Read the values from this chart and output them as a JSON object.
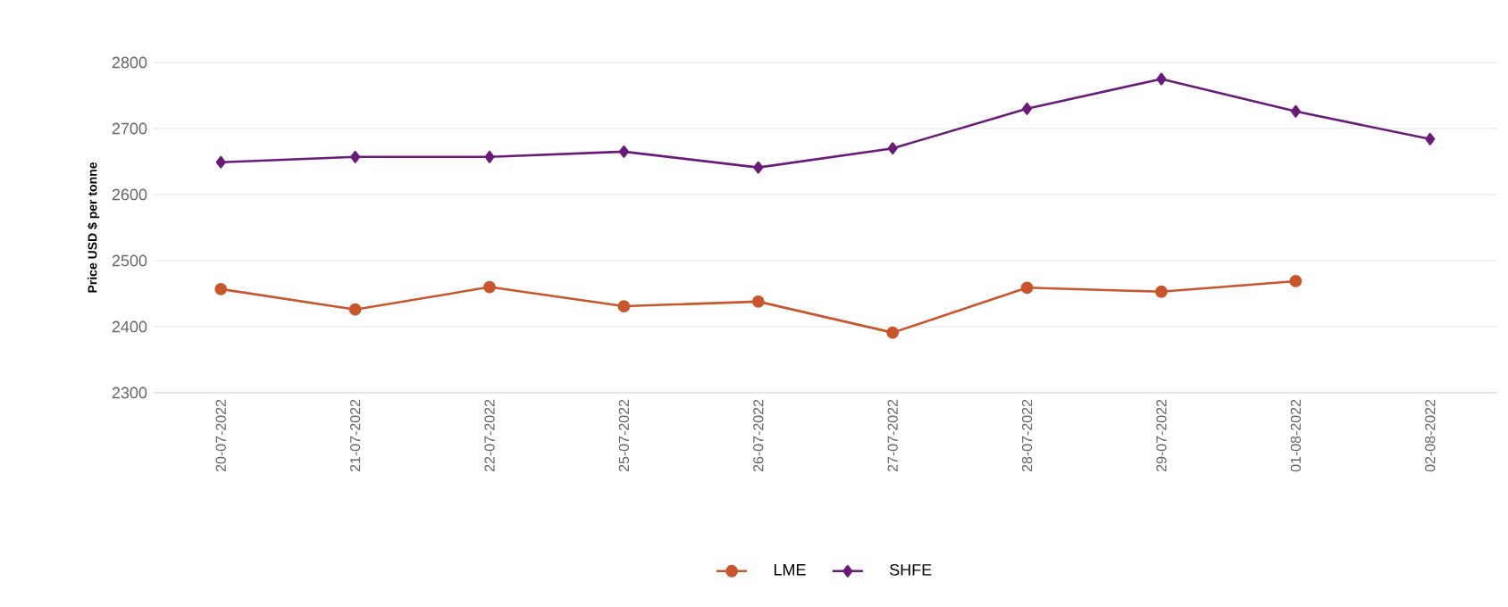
{
  "chart_data": {
    "type": "line",
    "ylabel": "Price USD $ per tonne",
    "categories": [
      "20-07-2022",
      "21-07-2022",
      "22-07-2022",
      "25-07-2022",
      "26-07-2022",
      "27-07-2022",
      "28-07-2022",
      "29-07-2022",
      "01-08-2022",
      "02-08-2022"
    ],
    "series": [
      {
        "name": "LME",
        "color": "#c8552b",
        "marker": "circle",
        "values": [
          2457,
          2426,
          2460,
          2431,
          2438,
          2391,
          2459,
          2453,
          2469,
          null
        ]
      },
      {
        "name": "SHFE",
        "color": "#6a1b7a",
        "marker": "diamond",
        "values": [
          2649,
          2657,
          2657,
          2665,
          2641,
          2670,
          2730,
          2775,
          2726,
          2684
        ]
      }
    ],
    "ylim": [
      2300,
      2800
    ],
    "yticks": [
      2300,
      2400,
      2500,
      2600,
      2700,
      2800
    ],
    "grid": "y",
    "legend": "bottom"
  }
}
